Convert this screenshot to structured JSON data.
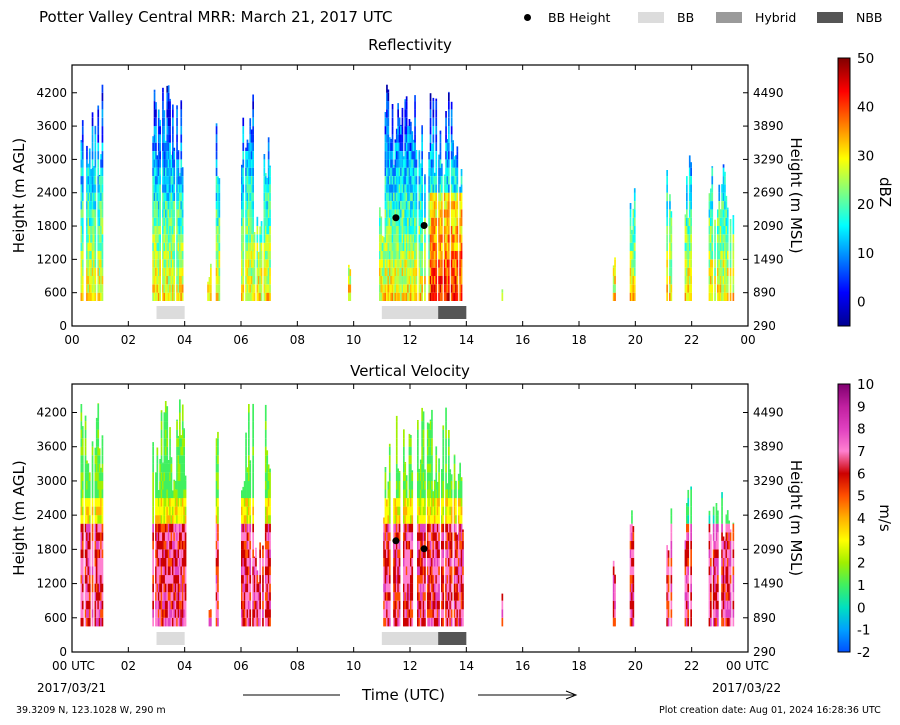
{
  "header": {
    "title": "Potter Valley Central MRR:  March 21, 2017 UTC",
    "legend": [
      {
        "label": "BB Height",
        "kind": "dot",
        "color": "#000000"
      },
      {
        "label": "BB",
        "kind": "swatch",
        "color": "#dcdcdc"
      },
      {
        "label": "Hybrid",
        "kind": "swatch",
        "color": "#9a9a9a"
      },
      {
        "label": "NBB",
        "kind": "swatch",
        "color": "#555555"
      }
    ]
  },
  "chart_data": [
    {
      "type": "heatmap",
      "title": "Reflectivity",
      "xlabel": "",
      "ylabel": "Height (m AGL)",
      "ylabel_right": "Height (m MSL)",
      "x_ticks": [
        "00",
        "02",
        "04",
        "06",
        "08",
        "10",
        "12",
        "14",
        "16",
        "18",
        "20",
        "22",
        "00"
      ],
      "xlim": [
        0,
        24
      ],
      "y_ticks": [
        "0",
        "600",
        "1200",
        "1800",
        "2400",
        "3000",
        "3600",
        "4200"
      ],
      "y_ticks_right": [
        "290",
        "890",
        "1490",
        "2090",
        "2690",
        "3290",
        "3890",
        "4490"
      ],
      "ylim": [
        0,
        4700
      ],
      "colorbar": {
        "label": "dBZ",
        "ticks": [
          "0",
          "10",
          "20",
          "30",
          "40",
          "50"
        ],
        "range": [
          -5,
          50
        ],
        "colormap": "jet"
      },
      "bb_height_points": [
        {
          "x": 11.5,
          "y": 1950
        },
        {
          "x": 12.5,
          "y": 1810
        }
      ],
      "bb_segments": [
        {
          "start": 3.0,
          "end": 4.0,
          "type": "BB"
        },
        {
          "start": 11.0,
          "end": 13.0,
          "type": "BB"
        },
        {
          "start": 13.0,
          "end": 14.0,
          "type": "NBB"
        }
      ]
    },
    {
      "type": "heatmap",
      "title": "Vertical Velocity",
      "xlabel": "Time (UTC)",
      "ylabel": "Height (m AGL)",
      "ylabel_right": "Height (m MSL)",
      "x_ticks": [
        "00 UTC",
        "02",
        "04",
        "06",
        "08",
        "10",
        "12",
        "14",
        "16",
        "18",
        "20",
        "22",
        "00 UTC"
      ],
      "xlim": [
        0,
        24
      ],
      "x_date_start": "2017/03/21",
      "x_date_end": "2017/03/22",
      "y_ticks": [
        "0",
        "600",
        "1200",
        "1800",
        "2400",
        "3000",
        "3600",
        "4200"
      ],
      "y_ticks_right": [
        "290",
        "890",
        "1490",
        "2090",
        "2690",
        "3290",
        "3890",
        "4490"
      ],
      "ylim": [
        0,
        4700
      ],
      "colorbar": {
        "label": "m/s",
        "ticks": [
          "-2",
          "-1",
          "0",
          "1",
          "2",
          "3",
          "4",
          "5",
          "6",
          "7",
          "8",
          "9",
          "10"
        ],
        "range": [
          -2,
          10
        ]
      },
      "bb_height_points": [
        {
          "x": 11.5,
          "y": 1950
        },
        {
          "x": 12.5,
          "y": 1810
        }
      ],
      "bb_segments": [
        {
          "start": 3.0,
          "end": 4.0,
          "type": "BB"
        },
        {
          "start": 11.0,
          "end": 13.0,
          "type": "BB"
        },
        {
          "start": 13.0,
          "end": 14.0,
          "type": "NBB"
        }
      ]
    }
  ],
  "footer": {
    "location": "39.3209 N, 123.1028 W, 290 m",
    "created": "Plot creation date: Aug 01, 2024 16:28:36 UTC",
    "date_start": "2017/03/21",
    "date_end": "2017/03/22",
    "time_label": "Time (UTC)"
  }
}
